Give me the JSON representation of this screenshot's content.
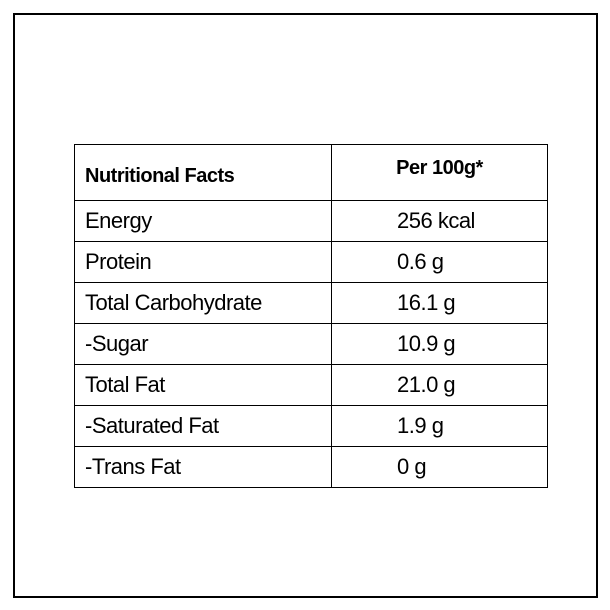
{
  "table": {
    "header": [
      "Nutritional Facts",
      "Per 100g*"
    ],
    "rows": [
      [
        "Energy",
        "256 kcal"
      ],
      [
        "Protein",
        "0.6 g"
      ],
      [
        "Total Carbohydrate",
        "16.1 g"
      ],
      [
        "-Sugar",
        "10.9 g"
      ],
      [
        "Total Fat",
        "21.0 g"
      ],
      [
        "-Saturated Fat",
        "1.9 g"
      ],
      [
        "-Trans Fat",
        "0 g"
      ]
    ]
  }
}
